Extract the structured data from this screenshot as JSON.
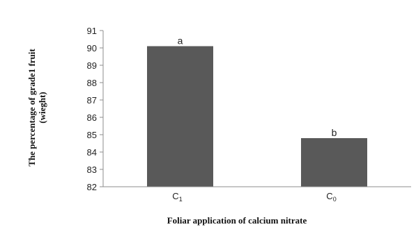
{
  "chart_data": {
    "type": "bar",
    "categories": [
      "C1",
      "C0"
    ],
    "category_labels": [
      {
        "main": "C",
        "sub": "1"
      },
      {
        "main": "C",
        "sub": "0"
      }
    ],
    "values": [
      90.1,
      84.8
    ],
    "significance_letters": [
      "a",
      "b"
    ],
    "ylabel": [
      "The percentage of grade1 fruit",
      "(wieght)"
    ],
    "xlabel": "Foliar application of calcium nitrate",
    "ylim": [
      82,
      91
    ],
    "yticks": [
      82,
      83,
      84,
      85,
      86,
      87,
      88,
      89,
      90,
      91
    ],
    "grid": false,
    "bar_color": "#595959"
  }
}
